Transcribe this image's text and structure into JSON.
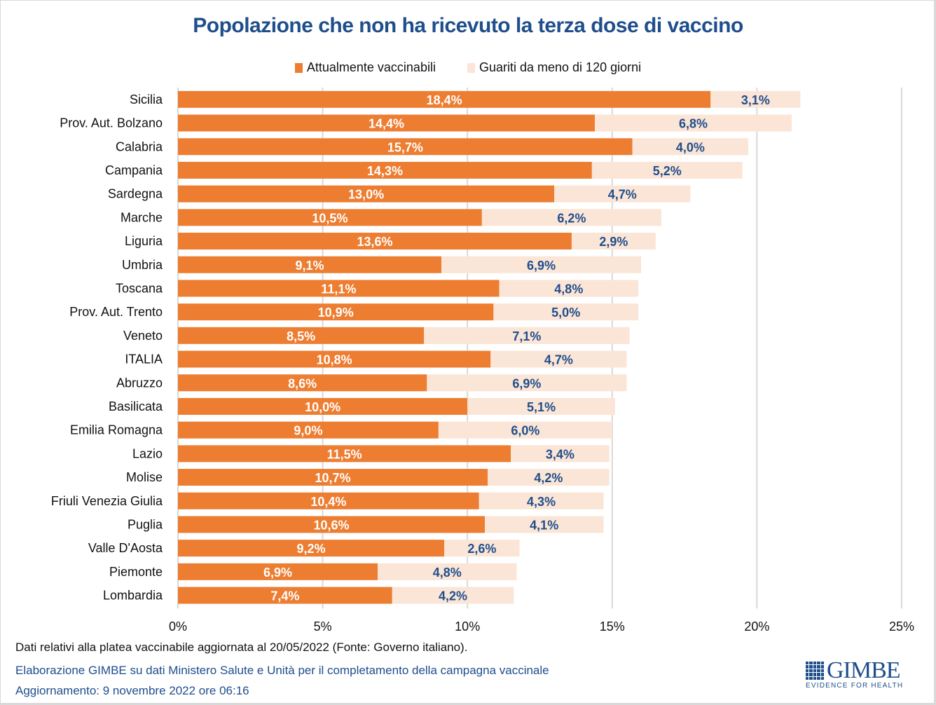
{
  "colors": {
    "primary": "#ed7d31",
    "secondary": "#fbe5d6",
    "title": "#1f4e8c",
    "label_out": "#1f4e8c",
    "gridline": "#d9d9d9"
  },
  "chart_data": {
    "type": "bar",
    "orientation": "horizontal",
    "stacked": true,
    "title": "Popolazione che non ha ricevuto la terza dose di vaccino",
    "xlabel": "",
    "ylabel": "",
    "xlim": [
      0,
      25
    ],
    "x_ticks": [
      0,
      5,
      10,
      15,
      20,
      25
    ],
    "x_tick_labels": [
      "0%",
      "5%",
      "10%",
      "15%",
      "20%",
      "25%"
    ],
    "grid": "vertical",
    "legend_position": "top-center",
    "categories": [
      "Sicilia",
      "Prov. Aut. Bolzano",
      "Calabria",
      "Campania",
      "Sardegna",
      "Marche",
      "Liguria",
      "Umbria",
      "Toscana",
      "Prov. Aut. Trento",
      "Veneto",
      "ITALIA",
      "Abruzzo",
      "Basilicata",
      "Emilia Romagna",
      "Lazio",
      "Molise",
      "Friuli Venezia Giulia",
      "Puglia",
      "Valle D'Aosta",
      "Piemonte",
      "Lombardia"
    ],
    "series": [
      {
        "name": "Attualmente vaccinabili",
        "color": "#ed7d31",
        "values": [
          18.4,
          14.4,
          15.7,
          14.3,
          13.0,
          10.5,
          13.6,
          9.1,
          11.1,
          10.9,
          8.5,
          10.8,
          8.6,
          10.0,
          9.0,
          11.5,
          10.7,
          10.4,
          10.6,
          9.2,
          6.9,
          7.4
        ],
        "labels": [
          "18,4%",
          "14,4%",
          "15,7%",
          "14,3%",
          "13,0%",
          "10,5%",
          "13,6%",
          "9,1%",
          "11,1%",
          "10,9%",
          "8,5%",
          "10,8%",
          "8,6%",
          "10,0%",
          "9,0%",
          "11,5%",
          "10,7%",
          "10,4%",
          "10,6%",
          "9,2%",
          "6,9%",
          "7,4%"
        ]
      },
      {
        "name": "Guariti da meno di 120 giorni",
        "color": "#fbe5d6",
        "values": [
          3.1,
          6.8,
          4.0,
          5.2,
          4.7,
          6.2,
          2.9,
          6.9,
          4.8,
          5.0,
          7.1,
          4.7,
          6.9,
          5.1,
          6.0,
          3.4,
          4.2,
          4.3,
          4.1,
          2.6,
          4.8,
          4.2
        ],
        "labels": [
          "3,1%",
          "6,8%",
          "4,0%",
          "5,2%",
          "4,7%",
          "6,2%",
          "2,9%",
          "6,9%",
          "4,8%",
          "5,0%",
          "7,1%",
          "4,7%",
          "6,9%",
          "5,1%",
          "6,0%",
          "3,4%",
          "4,2%",
          "4,3%",
          "4,1%",
          "2,6%",
          "4,8%",
          "4,2%"
        ]
      }
    ]
  },
  "footer": {
    "note": "Dati relativi alla platea vaccinabile aggiornata al 20/05/2022 (Fonte: Governo italiano).",
    "credit": "Elaborazione GIMBE su dati Ministero Salute e Unità per il completamento della campagna vaccinale",
    "updated": "Aggiornamento: 9 novembre 2022 ore 06:16"
  },
  "logo": {
    "brand": "GIMBE",
    "tagline": "EVIDENCE FOR HEALTH"
  }
}
